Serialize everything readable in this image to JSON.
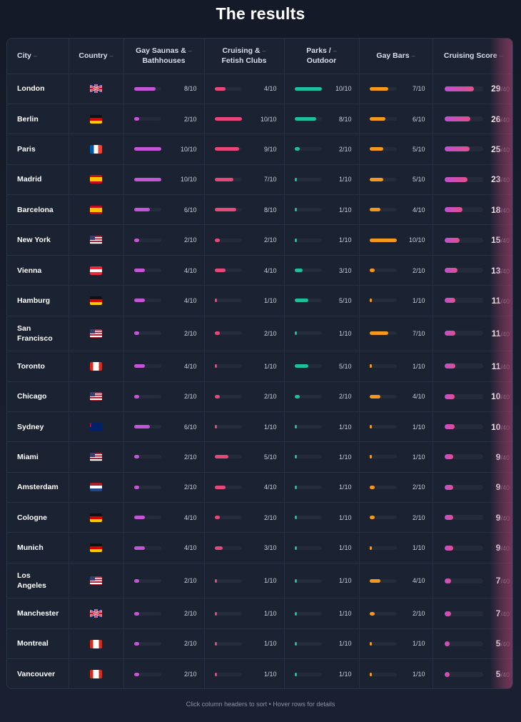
{
  "title": "The results",
  "footer": "Click column headers to sort • Hover rows for details",
  "colors": {
    "saunas": "#c455d6",
    "cruising": "#e8477a",
    "parks": "#1dbf9c",
    "bars": "#f2991e"
  },
  "columns": [
    {
      "label": "City"
    },
    {
      "label": "Country"
    },
    {
      "label": "Gay Saunas &",
      "label2": "Bathhouses"
    },
    {
      "label": "Cruising &",
      "label2": "Fetish Clubs"
    },
    {
      "label": "Parks /",
      "label2": "Outdoor"
    },
    {
      "label": "Gay Bars"
    },
    {
      "label": "Cruising Score"
    }
  ],
  "score_max": 40,
  "rows": [
    {
      "city": "London",
      "country": "UK",
      "saunas": "8/10",
      "cruising": "4/10",
      "parks": "10/10",
      "bars": "7/10",
      "score": 29,
      "score_den": "/40"
    },
    {
      "city": "Berlin",
      "country": "DE",
      "saunas": "2/10",
      "cruising": "10/10",
      "parks": "8/10",
      "bars": "6/10",
      "score": 26,
      "score_den": "/40"
    },
    {
      "city": "Paris",
      "country": "FR",
      "saunas": "10/10",
      "cruising": "9/10",
      "parks": "2/10",
      "bars": "5/10",
      "score": 25,
      "score_den": "/40"
    },
    {
      "city": "Madrid",
      "country": "ES",
      "saunas": "10/10",
      "cruising": "7/10",
      "parks": "1/10",
      "bars": "5/10",
      "score": 23,
      "score_den": "/40"
    },
    {
      "city": "Barcelona",
      "country": "ES",
      "saunas": "6/10",
      "cruising": "8/10",
      "parks": "1/10",
      "bars": "4/10",
      "score": 18,
      "score_den": "/40"
    },
    {
      "city": "New York",
      "country": "US",
      "saunas": "2/10",
      "cruising": "2/10",
      "parks": "1/10",
      "bars": "10/10",
      "score": 15,
      "score_den": "/40"
    },
    {
      "city": "Vienna",
      "country": "AT",
      "saunas": "4/10",
      "cruising": "4/10",
      "parks": "3/10",
      "bars": "2/10",
      "score": 13,
      "score_den": "/40"
    },
    {
      "city": "Hamburg",
      "country": "DE",
      "saunas": "4/10",
      "cruising": "1/10",
      "parks": "5/10",
      "bars": "1/10",
      "score": 11,
      "score_den": "/40"
    },
    {
      "city": "San",
      "city2": "Francisco",
      "country": "US",
      "saunas": "2/10",
      "cruising": "2/10",
      "parks": "1/10",
      "bars": "7/10",
      "score": 11,
      "score_den": "/40"
    },
    {
      "city": "Toronto",
      "country": "CA",
      "saunas": "4/10",
      "cruising": "1/10",
      "parks": "5/10",
      "bars": "1/10",
      "score": 11,
      "score_den": "/40"
    },
    {
      "city": "Chicago",
      "country": "US",
      "saunas": "2/10",
      "cruising": "2/10",
      "parks": "2/10",
      "bars": "4/10",
      "score": 10,
      "score_den": "/40"
    },
    {
      "city": "Sydney",
      "country": "AU",
      "saunas": "6/10",
      "cruising": "1/10",
      "parks": "1/10",
      "bars": "1/10",
      "score": 10,
      "score_den": "/40"
    },
    {
      "city": "Miami",
      "country": "US",
      "saunas": "2/10",
      "cruising": "5/10",
      "parks": "1/10",
      "bars": "1/10",
      "score": 9,
      "score_den": "/40"
    },
    {
      "city": "Amsterdam",
      "country": "NL",
      "saunas": "2/10",
      "cruising": "4/10",
      "parks": "1/10",
      "bars": "2/10",
      "score": 9,
      "score_den": "/40"
    },
    {
      "city": "Cologne",
      "country": "DE",
      "saunas": "4/10",
      "cruising": "2/10",
      "parks": "1/10",
      "bars": "2/10",
      "score": 9,
      "score_den": "/40"
    },
    {
      "city": "Munich",
      "country": "DE",
      "saunas": "4/10",
      "cruising": "3/10",
      "parks": "1/10",
      "bars": "1/10",
      "score": 9,
      "score_den": "/40"
    },
    {
      "city": "Los",
      "city2": "Angeles",
      "country": "US",
      "saunas": "2/10",
      "cruising": "1/10",
      "parks": "1/10",
      "bars": "4/10",
      "score": 7,
      "score_den": "/40"
    },
    {
      "city": "Manchester",
      "country": "UK",
      "saunas": "2/10",
      "cruising": "1/10",
      "parks": "1/10",
      "bars": "2/10",
      "score": 7,
      "score_den": "/40"
    },
    {
      "city": "Montreal",
      "country": "CA",
      "saunas": "2/10",
      "cruising": "1/10",
      "parks": "1/10",
      "bars": "1/10",
      "score": 5,
      "score_den": "/40"
    },
    {
      "city": "Vancouver",
      "country": "CA",
      "saunas": "2/10",
      "cruising": "1/10",
      "parks": "1/10",
      "bars": "1/10",
      "score": 5,
      "score_den": "/40"
    }
  ]
}
